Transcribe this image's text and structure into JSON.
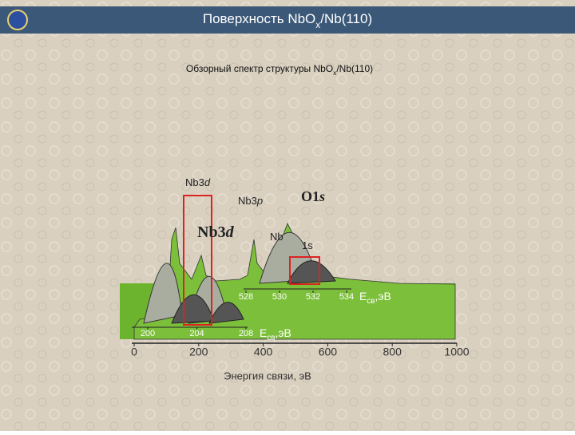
{
  "header": {
    "title_parts": [
      "Поверхность NbO",
      "x",
      "/Nb(110)"
    ]
  },
  "caption_parts": [
    "Обзорный спектр структуры NbO",
    "x",
    "/Nb(110)"
  ],
  "chart_data": {
    "type": "line",
    "xlim": [
      0,
      1000
    ],
    "xticks": [
      0,
      200,
      400,
      600,
      800,
      1000
    ],
    "x_label": "Энергия связи, эВ",
    "annotations": [
      "Nb3",
      "d",
      "Nb3",
      "p",
      "O1",
      "s",
      "Nb3",
      "d",
      "Nb",
      "1s"
    ],
    "insets": [
      {
        "xlim": [
          199,
          209
        ],
        "xticks": [
          200,
          204,
          208
        ],
        "x_label_parts": [
          "E",
          "св",
          ",эВ"
        ]
      },
      {
        "xlim": [
          526,
          535
        ],
        "xticks": [
          528,
          530,
          532,
          534
        ],
        "x_label_parts": [
          "E",
          "св",
          ",эВ"
        ]
      }
    ]
  }
}
